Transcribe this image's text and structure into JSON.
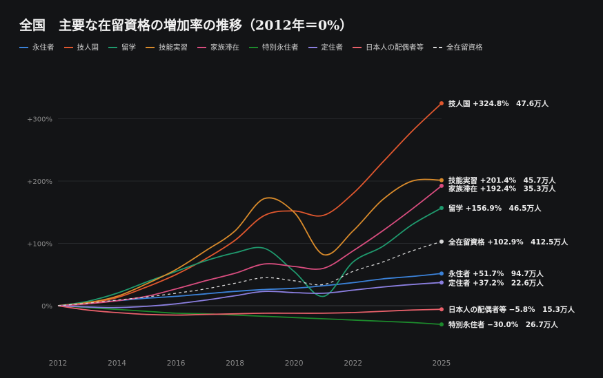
{
  "title": "全国　主要な在留資格の増加率の推移（2012年＝0%）",
  "chart_data": {
    "type": "line",
    "x": [
      2012,
      2013,
      2014,
      2015,
      2016,
      2017,
      2018,
      2019,
      2020,
      2021,
      2022,
      2023,
      2024,
      2025
    ],
    "xticks": [
      "2012",
      "2014",
      "2016",
      "2018",
      "2020",
      "2022",
      "2025"
    ],
    "yticks": [
      {
        "v": 0,
        "label": "0%"
      },
      {
        "v": 100,
        "label": "+100%"
      },
      {
        "v": 200,
        "label": "+200%"
      },
      {
        "v": 300,
        "label": "+300%"
      }
    ],
    "ylim": [
      -45,
      345
    ],
    "grid": true,
    "legend_position": "top-left",
    "series": [
      {
        "name": "永住者",
        "color": "#3b82d9",
        "dash": false,
        "values": [
          0,
          4,
          8,
          12,
          15,
          19,
          23,
          26,
          28,
          32,
          37,
          43,
          47,
          51.7
        ],
        "label": "永住者 +51.7%　94.7万人"
      },
      {
        "name": "技人国",
        "color": "#e0572e",
        "dash": false,
        "values": [
          0,
          4,
          13,
          30,
          50,
          75,
          105,
          145,
          152,
          145,
          180,
          230,
          280,
          324.8
        ],
        "label": "技人国 +324.8%　47.6万人"
      },
      {
        "name": "留学",
        "color": "#1f9a6e",
        "dash": false,
        "values": [
          0,
          7,
          20,
          38,
          55,
          72,
          85,
          92,
          55,
          15,
          70,
          95,
          130,
          156.9
        ],
        "label": "留学 +156.9%　46.5万人"
      },
      {
        "name": "技能実習",
        "color": "#d98b2b",
        "dash": false,
        "values": [
          0,
          5,
          15,
          35,
          58,
          88,
          120,
          172,
          150,
          82,
          120,
          170,
          200,
          201.4
        ],
        "label": "技能実習 +201.4%　45.7万人"
      },
      {
        "name": "家族滞在",
        "color": "#d94d7f",
        "dash": false,
        "values": [
          0,
          3,
          8,
          15,
          27,
          40,
          52,
          67,
          63,
          60,
          88,
          120,
          155,
          192.4
        ],
        "label": "家族滞在 +192.4%　35.3万人"
      },
      {
        "name": "特別永住者",
        "color": "#1c8a2c",
        "dash": false,
        "values": [
          0,
          -3,
          -6,
          -9,
          -12,
          -13,
          -15,
          -17,
          -19,
          -21,
          -23,
          -25,
          -27,
          -30
        ],
        "label": "特別永住者 −30.0%　26.7万人"
      },
      {
        "name": "定住者",
        "color": "#8b7fe0",
        "dash": false,
        "values": [
          0,
          -2,
          -3,
          -1,
          3,
          9,
          16,
          23,
          21,
          20,
          25,
          30,
          34,
          37.2
        ],
        "label": "定住者 +37.2%　22.6万人"
      },
      {
        "name": "日本人の配偶者等",
        "color": "#e8606a",
        "dash": false,
        "values": [
          0,
          -7,
          -11,
          -14,
          -15,
          -14,
          -13,
          -12,
          -12,
          -12,
          -11,
          -9,
          -7,
          -5.8
        ],
        "label": "日本人の配偶者等 −5.8%　15.3万人"
      },
      {
        "name": "全在留資格",
        "color": "#d8d8d8",
        "dash": true,
        "values": [
          0,
          4,
          9,
          14,
          20,
          27,
          36,
          45,
          40,
          34,
          55,
          70,
          88,
          102.9
        ],
        "label": "全在留資格 +102.9%　412.5万人"
      }
    ]
  }
}
